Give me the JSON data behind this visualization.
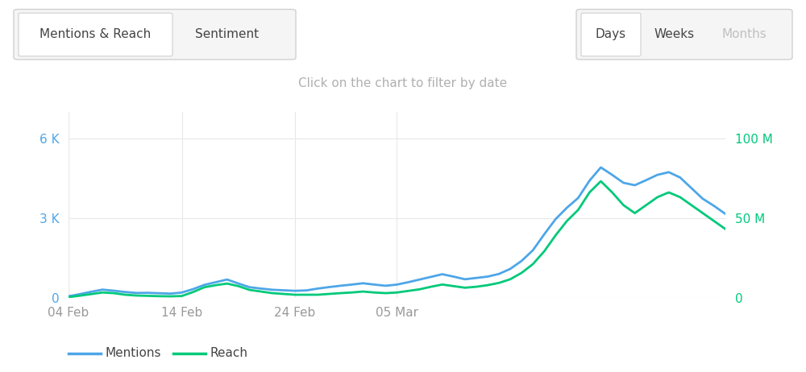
{
  "title_center": "Click on the chart to filter by date",
  "tab_labels_left": [
    "Mentions & Reach",
    "Sentiment"
  ],
  "tab_labels_right": [
    "Days",
    "Weeks",
    "Months"
  ],
  "mentions_color": "#4da6e8",
  "reach_color": "#00c97a",
  "background_color": "#ffffff",
  "grid_color": "#e8e8e8",
  "left_yticks": [
    0,
    3000,
    6000
  ],
  "left_yticklabels": [
    "0",
    "3 K",
    "6 K"
  ],
  "right_yticks": [
    0,
    50000000,
    100000000
  ],
  "right_yticklabels": [
    "0",
    "50 M",
    "100 M"
  ],
  "left_ylim": [
    0,
    7000
  ],
  "right_ylim": [
    0,
    116666666
  ],
  "xtick_labels": [
    "04 Feb",
    "14 Feb",
    "24 Feb",
    "05 Mar"
  ],
  "legend_mentions": "Mentions",
  "legend_reach": "Reach",
  "mentions_x": [
    0,
    1,
    2,
    3,
    4,
    5,
    6,
    7,
    8,
    9,
    10,
    11,
    12,
    13,
    14,
    15,
    16,
    17,
    18,
    19,
    20,
    21,
    22,
    23,
    24,
    25,
    26,
    27,
    28,
    29,
    30,
    31,
    32,
    33,
    34,
    35,
    36,
    37,
    38,
    39,
    40,
    41,
    42,
    43,
    44,
    45,
    46,
    47,
    48,
    49,
    50,
    51,
    52,
    53,
    54,
    55,
    56,
    57,
    58
  ],
  "mentions_y": [
    50,
    130,
    220,
    300,
    260,
    210,
    175,
    180,
    165,
    150,
    190,
    320,
    480,
    580,
    680,
    530,
    390,
    340,
    295,
    275,
    255,
    270,
    340,
    395,
    445,
    490,
    540,
    490,
    445,
    490,
    580,
    680,
    780,
    880,
    790,
    690,
    740,
    790,
    890,
    1080,
    1380,
    1780,
    2380,
    2950,
    3380,
    3750,
    4400,
    4900,
    4620,
    4320,
    4230,
    4420,
    4620,
    4720,
    4520,
    4120,
    3720,
    3450,
    3150
  ],
  "reach_y": [
    300000,
    1200000,
    2200000,
    3200000,
    2800000,
    1800000,
    1300000,
    1100000,
    900000,
    800000,
    1000000,
    3500000,
    6500000,
    7800000,
    8800000,
    7200000,
    4800000,
    3800000,
    2800000,
    2300000,
    1800000,
    1800000,
    1800000,
    2300000,
    2800000,
    3200000,
    3800000,
    3200000,
    2800000,
    3200000,
    4200000,
    5200000,
    6800000,
    8200000,
    7200000,
    6200000,
    6800000,
    7800000,
    9200000,
    11500000,
    15500000,
    21000000,
    29000000,
    39000000,
    48000000,
    55000000,
    66000000,
    73000000,
    66000000,
    58000000,
    53000000,
    58000000,
    63000000,
    66000000,
    63000000,
    58000000,
    53000000,
    48000000,
    43000000
  ]
}
